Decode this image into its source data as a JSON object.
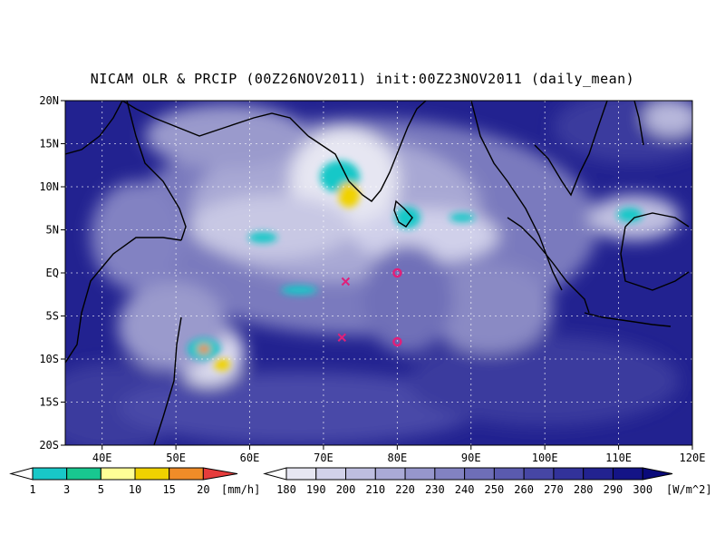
{
  "title": "NICAM OLR & PRCIP (00Z26NOV2011) init:00Z23NOV2011 (daily_mean)",
  "map": {
    "lon_range": [
      35,
      120
    ],
    "lat_range": [
      -20,
      20
    ],
    "lat_ticks": [
      {
        "value": 20,
        "label": "20N"
      },
      {
        "value": 15,
        "label": "15N"
      },
      {
        "value": 10,
        "label": "10N"
      },
      {
        "value": 5,
        "label": "5N"
      },
      {
        "value": 0,
        "label": "EQ"
      },
      {
        "value": -5,
        "label": "5S"
      },
      {
        "value": -10,
        "label": "10S"
      },
      {
        "value": -15,
        "label": "15S"
      },
      {
        "value": -20,
        "label": "20S"
      }
    ],
    "lon_ticks": [
      {
        "value": 40,
        "label": "40E"
      },
      {
        "value": 50,
        "label": "50E"
      },
      {
        "value": 60,
        "label": "60E"
      },
      {
        "value": 70,
        "label": "70E"
      },
      {
        "value": 80,
        "label": "80E"
      },
      {
        "value": 90,
        "label": "90E"
      },
      {
        "value": 100,
        "label": "100E"
      },
      {
        "value": 110,
        "label": "110E"
      },
      {
        "value": 120,
        "label": "120E"
      }
    ],
    "markers": [
      {
        "type": "cross",
        "lon": 73,
        "lat": -1,
        "color": "#e0207a"
      },
      {
        "type": "circle",
        "lon": 80,
        "lat": 0,
        "color": "#e0207a"
      },
      {
        "type": "cross",
        "lon": 72.5,
        "lat": -7.5,
        "color": "#e0207a"
      },
      {
        "type": "circle",
        "lon": 80,
        "lat": -8,
        "color": "#e0207a"
      }
    ]
  },
  "precip_legend": {
    "unit": "[mm/h]",
    "values": [
      "1",
      "3",
      "5",
      "10",
      "15",
      "20"
    ],
    "colors": [
      "#18c8c8",
      "#18c890",
      "#ffff96",
      "#f0d200",
      "#f08c28",
      "#e63c3c"
    ],
    "under_color": "#ffffff"
  },
  "olr_legend": {
    "unit": "[W/m^2]",
    "values": [
      "180",
      "190",
      "200",
      "210",
      "220",
      "230",
      "240",
      "250",
      "260",
      "270",
      "280",
      "290",
      "300"
    ],
    "colors": [
      "#e6e6f2",
      "#d2d2ea",
      "#bebee0",
      "#aaaad6",
      "#9696cc",
      "#8282c2",
      "#6e6eb8",
      "#5a5aae",
      "#4646a4",
      "#32329a",
      "#222290",
      "#141486",
      "#0a0a7a"
    ],
    "under_color": "#ffffff"
  }
}
